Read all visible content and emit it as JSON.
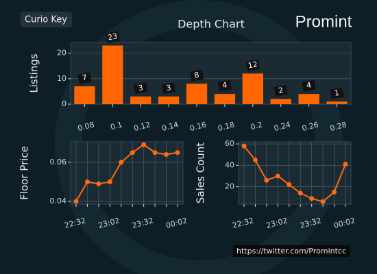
{
  "badge": "Curio Key",
  "logo": "Promint",
  "footer": "https://twitter.com/Promintcc",
  "chart_data": [
    {
      "type": "bar",
      "title": "Depth Chart",
      "ylabel": "Listings",
      "categories": [
        "0.08",
        "0.1",
        "0.12",
        "0.14",
        "0.16",
        "0.18",
        "0.2",
        "0.24",
        "0.26",
        "0.28"
      ],
      "values": [
        7,
        23,
        3,
        3,
        8,
        4,
        12,
        2,
        4,
        1
      ],
      "color": "#ff6600",
      "ylim": [
        0,
        24.2
      ],
      "yticks": [
        0,
        10,
        20
      ],
      "grid": true
    },
    {
      "type": "line",
      "ylabel": "Floor Price",
      "categories": [
        "22:32",
        null,
        null,
        "23:02",
        null,
        null,
        "23:32",
        null,
        null,
        "00:02"
      ],
      "values": [
        0.04,
        0.05,
        0.049,
        0.05,
        0.06,
        0.065,
        0.069,
        0.065,
        0.064,
        0.065
      ],
      "color": "#ff6a13",
      "ylim": [
        0.0386,
        0.0705
      ],
      "yticks": [
        0.04,
        0.06
      ],
      "grid": true
    },
    {
      "type": "line",
      "ylabel": "Sales Count",
      "categories": [
        "22:32",
        null,
        null,
        "23:02",
        null,
        null,
        "23:32",
        null,
        null,
        "00:02"
      ],
      "values": [
        58,
        45,
        26,
        30,
        22,
        14,
        9,
        6,
        15,
        41
      ],
      "color": "#ff6a13",
      "ylim": [
        3.7,
        62
      ],
      "yticks": [
        20,
        40,
        60
      ],
      "grid": true
    }
  ]
}
